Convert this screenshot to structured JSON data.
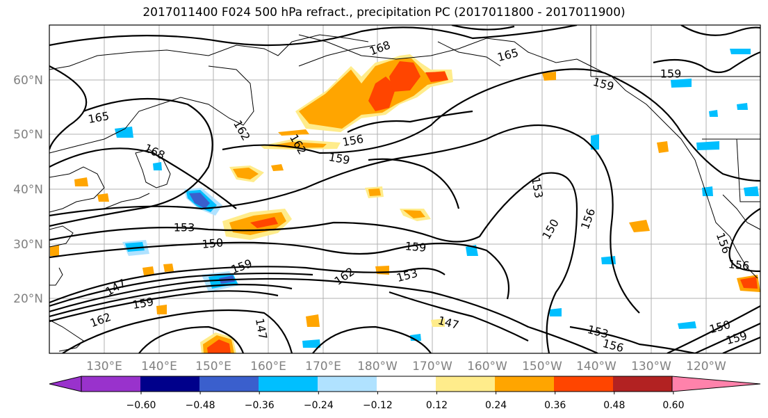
{
  "title": "2017011400 F024 500 hPa refract., precipitation PC (2017011800 - 2017011900)",
  "axes": {
    "lat_labels": [
      "60°N",
      "50°N",
      "40°N",
      "30°N",
      "20°N"
    ],
    "lon_labels": [
      "130°E",
      "140°E",
      "150°E",
      "160°E",
      "170°E",
      "180°W",
      "170°W",
      "160°W",
      "150°W",
      "140°W",
      "130°W",
      "120°W"
    ],
    "label_color": "#808080"
  },
  "colorbar": {
    "colors": [
      "#9932cc",
      "#00008b",
      "#3a5fcd",
      "#00bfff",
      "#b0e2ff",
      "#ffffff",
      "#ffec8b",
      "#ffa500",
      "#ff4500",
      "#b22222",
      "#ff82ab"
    ],
    "tick_labels": [
      "−0.60",
      "−0.48",
      "−0.36",
      "−0.24",
      "−0.12",
      "0.12",
      "0.24",
      "0.36",
      "0.48",
      "0.60"
    ]
  },
  "contour_labels": [
    "165",
    "168",
    "165",
    "159",
    "159",
    "168",
    "162",
    "162",
    "159",
    "156",
    "153",
    "156",
    "150",
    "153",
    "159",
    "159",
    "153",
    "162",
    "156",
    "150",
    "147",
    "159",
    "162",
    "156",
    "147",
    "153",
    "156",
    "150",
    "159",
    "147"
  ],
  "colors": {
    "positive_light": "#ffec8b",
    "positive_mid": "#ffa500",
    "positive_strong": "#ff4500",
    "negative_light": "#b0e2ff",
    "negative_mid": "#00bfff",
    "negative_strong": "#3a5fcd"
  }
}
